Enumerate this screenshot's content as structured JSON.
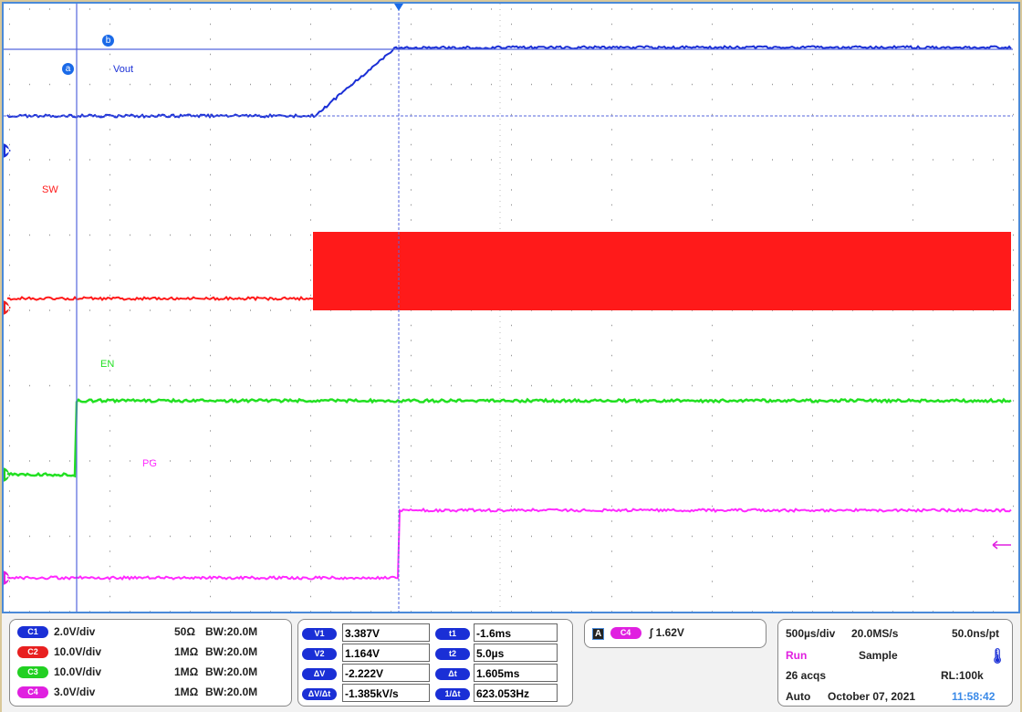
{
  "traces": {
    "vout": {
      "label": "Vout",
      "color": "#1a2fd6"
    },
    "sw": {
      "label": "SW",
      "color": "#ff1a1a"
    },
    "en": {
      "label": "EN",
      "color": "#22e022"
    },
    "pg": {
      "label": "PG",
      "color": "#ff2aff"
    }
  },
  "cursors": {
    "a": "a",
    "b": "b"
  },
  "channels": [
    {
      "id": "C1",
      "scale": "2.0V/div",
      "impedance": "50Ω",
      "bw": "BW:20.0M",
      "color": "#1a2fd6"
    },
    {
      "id": "C2",
      "scale": "10.0V/div",
      "impedance": "1MΩ",
      "bw": "BW:20.0M",
      "color": "#e82020"
    },
    {
      "id": "C3",
      "scale": "10.0V/div",
      "impedance": "1MΩ",
      "bw": "BW:20.0M",
      "color": "#22d022"
    },
    {
      "id": "C4",
      "scale": "3.0V/div",
      "impedance": "1MΩ",
      "bw": "BW:20.0M",
      "color": "#e020e0"
    }
  ],
  "measurements": [
    {
      "label": "V1",
      "value": "3.387V",
      "label2": "t1",
      "value2": "-1.6ms"
    },
    {
      "label": "V2",
      "value": "1.164V",
      "label2": "t2",
      "value2": "5.0µs"
    },
    {
      "label": "ΔV",
      "value": "-2.222V",
      "label2": "Δt",
      "value2": "1.605ms"
    },
    {
      "label": "ΔV/Δt",
      "value": "-1.385kV/s",
      "label2": "1/Δt",
      "value2": "623.053Hz"
    }
  ],
  "trigger": {
    "mode": "A",
    "source": "C4",
    "slope": "∫",
    "level": "1.62V"
  },
  "acquisition": {
    "timebase": "500µs/div",
    "sample_rate": "20.0MS/s",
    "resolution": "50.0ns/pt",
    "state": "Run",
    "mode": "Sample",
    "acqs": "26 acqs",
    "record_length": "RL:100k",
    "trigger_mode": "Auto",
    "date": "October 07, 2021",
    "time": "11:58:42"
  }
}
